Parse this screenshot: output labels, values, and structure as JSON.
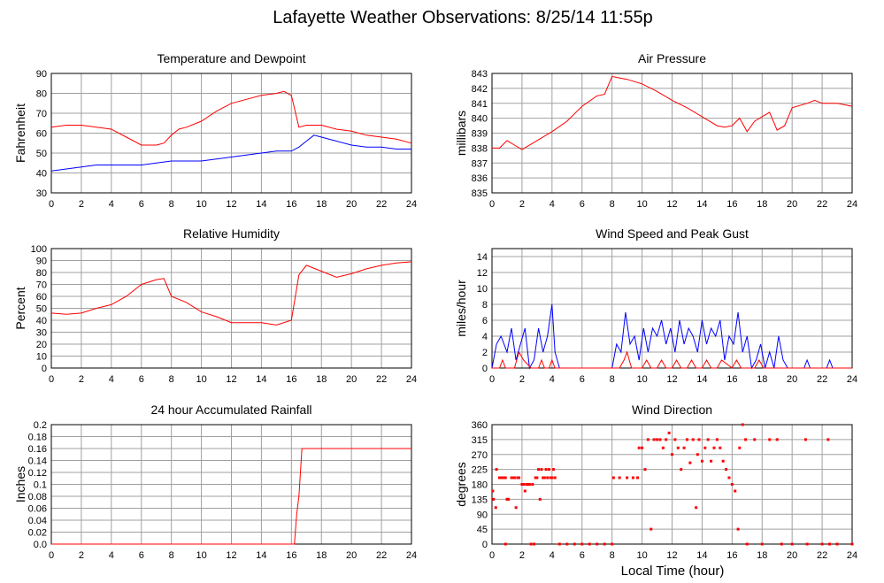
{
  "page": {
    "title": "Lafayette Weather Observations: 8/25/14 11:55p",
    "xlabel": "Local Time (hour)"
  },
  "chart_data": [
    {
      "id": "temp",
      "type": "line",
      "title": "Temperature and Dewpoint",
      "ylabel": "Fahrenheit",
      "xlim": [
        0,
        24
      ],
      "ylim": [
        30,
        90
      ],
      "xticks": [
        0,
        2,
        4,
        6,
        8,
        10,
        12,
        14,
        16,
        18,
        20,
        22,
        24
      ],
      "yticks": [
        30,
        40,
        50,
        60,
        70,
        80,
        90
      ],
      "grid": true,
      "series": [
        {
          "color": "#ff0000",
          "x": [
            0,
            1,
            2,
            3,
            4,
            5,
            6,
            7,
            7.5,
            8,
            8.5,
            9,
            10,
            11,
            12,
            13,
            14,
            15,
            15.5,
            16,
            16.5,
            17,
            18,
            19,
            20,
            21,
            22,
            23,
            24
          ],
          "y": [
            63,
            64,
            64,
            63,
            62,
            58,
            54,
            54,
            55,
            59,
            62,
            63,
            66,
            71,
            75,
            77,
            79,
            80,
            81,
            79,
            63,
            64,
            64,
            62,
            61,
            59,
            58,
            57,
            55
          ]
        },
        {
          "color": "#0000ff",
          "x": [
            0,
            1,
            2,
            3,
            4,
            5,
            6,
            7,
            8,
            9,
            10,
            11,
            12,
            13,
            14,
            15,
            16,
            16.5,
            17,
            17.5,
            18,
            19,
            20,
            21,
            22,
            23,
            24
          ],
          "y": [
            41,
            42,
            43,
            44,
            44,
            44,
            44,
            45,
            46,
            46,
            46,
            47,
            48,
            49,
            50,
            51,
            51,
            53,
            56,
            59,
            58,
            56,
            54,
            53,
            53,
            52,
            52
          ]
        }
      ]
    },
    {
      "id": "pressure",
      "type": "line",
      "title": "Air Pressure",
      "ylabel": "millibars",
      "xlim": [
        0,
        24
      ],
      "ylim": [
        835,
        843
      ],
      "xticks": [
        0,
        2,
        4,
        6,
        8,
        10,
        12,
        14,
        16,
        18,
        20,
        22,
        24
      ],
      "yticks": [
        835,
        836,
        837,
        838,
        839,
        840,
        841,
        842,
        843
      ],
      "grid": true,
      "series": [
        {
          "color": "#ff0000",
          "x": [
            0,
            0.5,
            1,
            1.5,
            2,
            3,
            4,
            5,
            6,
            7,
            7.5,
            8,
            8.5,
            9,
            10,
            11,
            12,
            13,
            14,
            15,
            15.5,
            16,
            16.5,
            17,
            17.5,
            18,
            18.5,
            19,
            19.5,
            20,
            21,
            21.5,
            22,
            23,
            24
          ],
          "y": [
            838,
            838,
            838.5,
            838.2,
            837.9,
            838.5,
            839.1,
            839.8,
            840.8,
            841.5,
            841.6,
            842.8,
            842.7,
            842.6,
            842.3,
            841.8,
            841.2,
            840.7,
            840.1,
            839.5,
            839.4,
            839.5,
            840,
            839.1,
            839.8,
            840.1,
            840.4,
            839.2,
            839.5,
            840.7,
            841,
            841.2,
            841,
            841,
            840.8
          ]
        }
      ]
    },
    {
      "id": "humidity",
      "type": "line",
      "title": "Relative Humidity",
      "ylabel": "Percent",
      "xlim": [
        0,
        24
      ],
      "ylim": [
        0,
        100
      ],
      "xticks": [
        0,
        2,
        4,
        6,
        8,
        10,
        12,
        14,
        16,
        18,
        20,
        22,
        24
      ],
      "yticks": [
        0,
        10,
        20,
        30,
        40,
        50,
        60,
        70,
        80,
        90,
        100
      ],
      "grid": true,
      "series": [
        {
          "color": "#ff0000",
          "x": [
            0,
            1,
            2,
            3,
            4,
            5,
            6,
            7,
            7.5,
            8,
            9,
            10,
            11,
            12,
            13,
            14,
            15,
            16,
            16.5,
            17,
            18,
            19,
            20,
            21,
            22,
            23,
            24
          ],
          "y": [
            46,
            45,
            46,
            50,
            53,
            60,
            70,
            74,
            75,
            60,
            55,
            47,
            43,
            38,
            38,
            38,
            36,
            40,
            78,
            86,
            81,
            76,
            79,
            83,
            86,
            88,
            89
          ]
        }
      ]
    },
    {
      "id": "wind",
      "type": "line",
      "title": "Wind Speed and Peak Gust",
      "ylabel": "miles/hour",
      "xlim": [
        0,
        24
      ],
      "ylim": [
        0,
        15
      ],
      "xticks": [
        0,
        2,
        4,
        6,
        8,
        10,
        12,
        14,
        16,
        18,
        20,
        22,
        24
      ],
      "yticks": [
        0,
        2,
        4,
        6,
        8,
        10,
        12,
        14
      ],
      "grid": true,
      "series": [
        {
          "color": "#0000ff",
          "x": [
            0,
            0.3,
            0.6,
            1,
            1.3,
            1.6,
            1.9,
            2.2,
            2.5,
            2.8,
            3.1,
            3.4,
            3.7,
            4,
            4.2,
            4.5,
            8,
            8.3,
            8.6,
            8.9,
            9.2,
            9.5,
            9.8,
            10.1,
            10.4,
            10.7,
            11,
            11.3,
            11.6,
            11.9,
            12.2,
            12.5,
            12.8,
            13.1,
            13.4,
            13.7,
            14,
            14.3,
            14.6,
            14.9,
            15.2,
            15.5,
            15.8,
            16.1,
            16.4,
            16.7,
            17,
            17.3,
            17.6,
            17.9,
            18.2,
            18.5,
            18.8,
            19.1,
            19.4,
            19.7,
            20.8,
            21,
            21.2,
            22.3,
            22.5,
            22.7,
            24
          ],
          "y": [
            0,
            3,
            4,
            2,
            5,
            1,
            3,
            5,
            0,
            1,
            5,
            2,
            4,
            8,
            2,
            0,
            0,
            3,
            2,
            7,
            3,
            4,
            1,
            5,
            2,
            5,
            4,
            6,
            3,
            5,
            2,
            6,
            3,
            5,
            4,
            2,
            6,
            3,
            5,
            4,
            6,
            1,
            4,
            3,
            7,
            2,
            4,
            0,
            1,
            3,
            0,
            2,
            0,
            4,
            1,
            0,
            0,
            1,
            0,
            0,
            1,
            0,
            0
          ]
        },
        {
          "color": "#ff0000",
          "x": [
            0,
            0.5,
            0.7,
            0.9,
            1.5,
            1.8,
            2.1,
            2.6,
            3.1,
            3.3,
            3.5,
            3.8,
            4,
            4.2,
            8.5,
            8.8,
            9,
            9.3,
            10,
            10.3,
            10.6,
            11,
            11.3,
            11.6,
            12,
            12.3,
            12.6,
            13,
            13.3,
            13.6,
            14,
            14.3,
            14.6,
            15,
            15.3,
            16,
            16.3,
            16.6,
            17.5,
            17.8,
            18.1,
            24
          ],
          "y": [
            0,
            0,
            1,
            0,
            0,
            2,
            1,
            0,
            0,
            1,
            0,
            0,
            1,
            0,
            0,
            1,
            2,
            0,
            0,
            1,
            0,
            0,
            1,
            0,
            0,
            1,
            0,
            0,
            1,
            0,
            0,
            1,
            0,
            0,
            1,
            0,
            1,
            0,
            0,
            1,
            0,
            0
          ]
        }
      ]
    },
    {
      "id": "rain",
      "type": "line",
      "title": "24 hour Accumulated Rainfall",
      "ylabel": "Inches",
      "xlim": [
        0,
        24
      ],
      "ylim": [
        0,
        0.2
      ],
      "xticks": [
        0,
        2,
        4,
        6,
        8,
        10,
        12,
        14,
        16,
        18,
        20,
        22,
        24
      ],
      "yticks": [
        "0.0",
        "0.02",
        "0.04",
        "0.06",
        "0.08",
        "0.1",
        "0.12",
        "0.14",
        "0.16",
        "0.18",
        "0.2"
      ],
      "grid": true,
      "series": [
        {
          "color": "#ff0000",
          "x": [
            0,
            16.2,
            16.35,
            16.5,
            16.6,
            16.7,
            24
          ],
          "y": [
            0,
            0,
            0.05,
            0.08,
            0.12,
            0.16,
            0.16
          ]
        }
      ]
    },
    {
      "id": "direction",
      "type": "scatter",
      "title": "Wind Direction",
      "ylabel": "degrees",
      "xlim": [
        0,
        24
      ],
      "ylim": [
        0,
        360
      ],
      "xticks": [
        0,
        2,
        4,
        6,
        8,
        10,
        12,
        14,
        16,
        18,
        20,
        22,
        24
      ],
      "yticks": [
        0,
        45,
        90,
        135,
        180,
        225,
        270,
        315,
        360
      ],
      "grid": true,
      "series": [
        {
          "color": "#ff0000",
          "points": [
            [
              0.05,
              160
            ],
            [
              0.1,
              135
            ],
            [
              0.25,
              110
            ],
            [
              0.3,
              225
            ],
            [
              0.5,
              200
            ],
            [
              0.6,
              200
            ],
            [
              0.7,
              200
            ],
            [
              0.8,
              200
            ],
            [
              0.9,
              200
            ],
            [
              1.0,
              135
            ],
            [
              1.1,
              135
            ],
            [
              0.9,
              0
            ],
            [
              1.3,
              200
            ],
            [
              1.4,
              200
            ],
            [
              1.5,
              200
            ],
            [
              1.6,
              110
            ],
            [
              1.7,
              200
            ],
            [
              1.8,
              200
            ],
            [
              2.0,
              180
            ],
            [
              2.1,
              180
            ],
            [
              2.2,
              160
            ],
            [
              2.3,
              180
            ],
            [
              2.4,
              180
            ],
            [
              2.5,
              180
            ],
            [
              2.6,
              0
            ],
            [
              2.7,
              180
            ],
            [
              2.8,
              0
            ],
            [
              2.9,
              200
            ],
            [
              3.0,
              200
            ],
            [
              3.1,
              225
            ],
            [
              3.2,
              135
            ],
            [
              3.3,
              225
            ],
            [
              3.4,
              200
            ],
            [
              3.5,
              200
            ],
            [
              3.6,
              225
            ],
            [
              3.7,
              200
            ],
            [
              3.8,
              225
            ],
            [
              3.9,
              200
            ],
            [
              4.0,
              200
            ],
            [
              4.1,
              225
            ],
            [
              4.2,
              200
            ],
            [
              4.5,
              0
            ],
            [
              5.0,
              0
            ],
            [
              5.5,
              0
            ],
            [
              6.0,
              0
            ],
            [
              6.5,
              0
            ],
            [
              7.0,
              0
            ],
            [
              7.5,
              0
            ],
            [
              8.0,
              0
            ],
            [
              8.1,
              200
            ],
            [
              8.5,
              200
            ],
            [
              9.0,
              200
            ],
            [
              9.4,
              200
            ],
            [
              9.7,
              200
            ],
            [
              9.8,
              290
            ],
            [
              10.0,
              290
            ],
            [
              10.2,
              225
            ],
            [
              10.4,
              315
            ],
            [
              10.6,
              45
            ],
            [
              10.8,
              315
            ],
            [
              11.0,
              315
            ],
            [
              11.2,
              315
            ],
            [
              11.4,
              290
            ],
            [
              11.6,
              315
            ],
            [
              11.8,
              335
            ],
            [
              12.0,
              270
            ],
            [
              12.2,
              315
            ],
            [
              12.4,
              290
            ],
            [
              12.6,
              225
            ],
            [
              12.8,
              290
            ],
            [
              13.0,
              315
            ],
            [
              13.2,
              245
            ],
            [
              13.4,
              315
            ],
            [
              13.6,
              110
            ],
            [
              13.7,
              270
            ],
            [
              13.8,
              315
            ],
            [
              14.0,
              250
            ],
            [
              14.2,
              290
            ],
            [
              14.4,
              315
            ],
            [
              14.6,
              250
            ],
            [
              14.8,
              290
            ],
            [
              15.0,
              315
            ],
            [
              15.2,
              290
            ],
            [
              15.4,
              250
            ],
            [
              15.6,
              225
            ],
            [
              15.8,
              200
            ],
            [
              16.0,
              180
            ],
            [
              16.2,
              160
            ],
            [
              16.4,
              45
            ],
            [
              16.5,
              290
            ],
            [
              16.7,
              360
            ],
            [
              16.9,
              315
            ],
            [
              17.0,
              0
            ],
            [
              17.5,
              315
            ],
            [
              18.0,
              0
            ],
            [
              18.5,
              315
            ],
            [
              19.0,
              315
            ],
            [
              19.3,
              0
            ],
            [
              20.0,
              0
            ],
            [
              20.9,
              315
            ],
            [
              21.0,
              0
            ],
            [
              22.0,
              0
            ],
            [
              22.4,
              315
            ],
            [
              22.5,
              0
            ],
            [
              23.0,
              0
            ],
            [
              24.0,
              0
            ]
          ]
        }
      ]
    }
  ]
}
